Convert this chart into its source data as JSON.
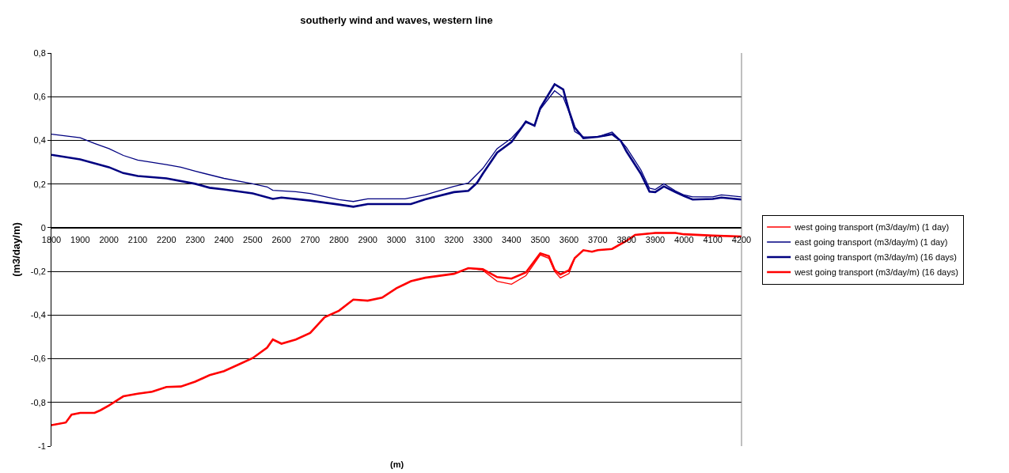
{
  "chart_data": {
    "type": "line",
    "title": "southerly wind and waves, western line",
    "xlabel": "(m)",
    "ylabel": "(m3/day/m)",
    "xlim": [
      1800,
      4200
    ],
    "xticks": [
      1800,
      1900,
      2000,
      2100,
      2200,
      2300,
      2400,
      2500,
      2600,
      2700,
      2800,
      2900,
      3000,
      3100,
      3200,
      3300,
      3400,
      3500,
      3600,
      3700,
      3800,
      3900,
      4000,
      4100,
      4200
    ],
    "ylim": [
      -1,
      0.8
    ],
    "yticks": [
      {
        "value": 0.8,
        "label": "0,8"
      },
      {
        "value": 0.6,
        "label": "0,6"
      },
      {
        "value": 0.4,
        "label": "0,4"
      },
      {
        "value": 0.2,
        "label": "0,2"
      },
      0,
      {
        "value": -0.2,
        "label": "-0,2"
      },
      {
        "value": -0.4,
        "label": "-0,4"
      },
      {
        "value": -0.6,
        "label": "-0,6"
      },
      {
        "value": -0.8,
        "label": "-0,8"
      },
      -1
    ],
    "grid": "y",
    "legend": "right",
    "marker": "none",
    "line_style": "solid",
    "series": [
      {
        "name": "west going transport (m3/day/m) (1 day)",
        "color": "#ff0000",
        "x": [
          1800,
          1850,
          1870,
          1900,
          1950,
          1970,
          2000,
          2050,
          2100,
          2150,
          2200,
          2250,
          2300,
          2350,
          2400,
          2450,
          2500,
          2550,
          2570,
          2600,
          2650,
          2700,
          2750,
          2800,
          2850,
          2900,
          2950,
          3000,
          3050,
          3100,
          3200,
          3250,
          3300,
          3350,
          3400,
          3450,
          3500,
          3530,
          3550,
          3570,
          3600,
          3620,
          3650,
          3680,
          3700,
          3750,
          3800,
          3830,
          3900,
          3970,
          4000,
          4100,
          4200
        ],
        "values": [
          -0.904,
          -0.892,
          -0.856,
          -0.848,
          -0.848,
          -0.836,
          -0.814,
          -0.772,
          -0.76,
          -0.751,
          -0.729,
          -0.727,
          -0.705,
          -0.675,
          -0.657,
          -0.627,
          -0.597,
          -0.549,
          -0.512,
          -0.531,
          -0.512,
          -0.482,
          -0.41,
          -0.38,
          -0.329,
          -0.334,
          -0.32,
          -0.277,
          -0.245,
          -0.229,
          -0.211,
          -0.185,
          -0.195,
          -0.245,
          -0.259,
          -0.22,
          -0.125,
          -0.14,
          -0.2,
          -0.23,
          -0.21,
          -0.139,
          -0.103,
          -0.11,
          -0.103,
          -0.097,
          -0.06,
          -0.033,
          -0.024,
          -0.024,
          -0.03,
          -0.036,
          -0.04
        ]
      },
      {
        "name": "east going transport (m3/day/m) (1 day)",
        "color": "#000080",
        "x": [
          1800,
          1900,
          1950,
          2000,
          2050,
          2100,
          2200,
          2250,
          2300,
          2400,
          2500,
          2550,
          2570,
          2650,
          2700,
          2800,
          2850,
          2900,
          3000,
          3030,
          3100,
          3200,
          3250,
          3300,
          3350,
          3400,
          3450,
          3480,
          3500,
          3550,
          3580,
          3600,
          3620,
          3650,
          3700,
          3750,
          3780,
          3800,
          3850,
          3880,
          3900,
          3930,
          3970,
          4000,
          4030,
          4100,
          4130,
          4200
        ],
        "values": [
          0.428,
          0.412,
          0.386,
          0.362,
          0.331,
          0.31,
          0.289,
          0.277,
          0.259,
          0.226,
          0.201,
          0.187,
          0.171,
          0.165,
          0.157,
          0.129,
          0.12,
          0.132,
          0.132,
          0.132,
          0.15,
          0.189,
          0.205,
          0.271,
          0.362,
          0.41,
          0.482,
          0.467,
          0.542,
          0.627,
          0.597,
          0.53,
          0.44,
          0.416,
          0.416,
          0.438,
          0.398,
          0.367,
          0.265,
          0.181,
          0.175,
          0.201,
          0.169,
          0.15,
          0.141,
          0.141,
          0.15,
          0.141
        ]
      },
      {
        "name": "east going transport (m3/day/m) (16 days)",
        "color": "#000080",
        "x": [
          1800,
          1900,
          1950,
          2000,
          2050,
          2100,
          2200,
          2300,
          2350,
          2400,
          2500,
          2570,
          2600,
          2700,
          2800,
          2850,
          2900,
          3000,
          3050,
          3100,
          3200,
          3250,
          3280,
          3300,
          3350,
          3400,
          3450,
          3480,
          3500,
          3550,
          3580,
          3600,
          3620,
          3650,
          3700,
          3750,
          3780,
          3800,
          3850,
          3880,
          3900,
          3930,
          3970,
          4000,
          4030,
          4100,
          4130,
          4200
        ],
        "values": [
          0.334,
          0.313,
          0.295,
          0.277,
          0.25,
          0.237,
          0.226,
          0.201,
          0.183,
          0.175,
          0.157,
          0.132,
          0.138,
          0.124,
          0.106,
          0.096,
          0.108,
          0.108,
          0.108,
          0.13,
          0.163,
          0.169,
          0.205,
          0.247,
          0.344,
          0.392,
          0.486,
          0.467,
          0.548,
          0.657,
          0.633,
          0.536,
          0.458,
          0.41,
          0.416,
          0.428,
          0.398,
          0.349,
          0.247,
          0.165,
          0.163,
          0.189,
          0.163,
          0.145,
          0.129,
          0.132,
          0.138,
          0.129
        ]
      },
      {
        "name": "west going transport (m3/day/m) (16 days)",
        "color": "#ff0000",
        "x": [
          1800,
          1850,
          1870,
          1900,
          1950,
          1970,
          2000,
          2050,
          2100,
          2150,
          2200,
          2250,
          2300,
          2350,
          2400,
          2450,
          2500,
          2550,
          2570,
          2600,
          2650,
          2700,
          2750,
          2800,
          2850,
          2900,
          2950,
          3000,
          3050,
          3100,
          3200,
          3250,
          3300,
          3350,
          3400,
          3450,
          3500,
          3530,
          3550,
          3570,
          3600,
          3620,
          3650,
          3680,
          3700,
          3750,
          3800,
          3830,
          3900,
          3970,
          4000,
          4100,
          4200
        ],
        "values": [
          -0.904,
          -0.892,
          -0.856,
          -0.848,
          -0.848,
          -0.836,
          -0.814,
          -0.772,
          -0.76,
          -0.751,
          -0.729,
          -0.727,
          -0.705,
          -0.675,
          -0.657,
          -0.627,
          -0.597,
          -0.549,
          -0.512,
          -0.531,
          -0.512,
          -0.482,
          -0.41,
          -0.38,
          -0.329,
          -0.334,
          -0.32,
          -0.277,
          -0.245,
          -0.229,
          -0.211,
          -0.185,
          -0.19,
          -0.226,
          -0.233,
          -0.205,
          -0.117,
          -0.13,
          -0.193,
          -0.214,
          -0.195,
          -0.139,
          -0.103,
          -0.11,
          -0.103,
          -0.097,
          -0.06,
          -0.033,
          -0.024,
          -0.024,
          -0.03,
          -0.036,
          -0.04
        ]
      }
    ]
  }
}
